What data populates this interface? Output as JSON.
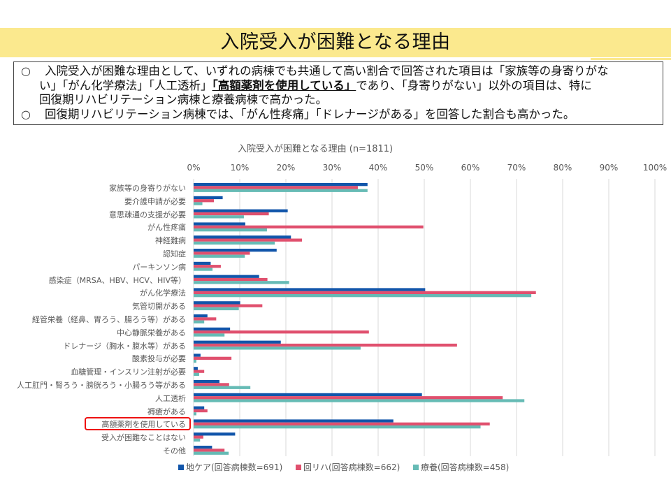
{
  "page": {
    "title": "入院受入が困難となる理由",
    "summary": {
      "bullet": "○",
      "line1": "入院受入が困難な理由として、いずれの病棟でも共通して高い割合で回答された項目は「家族等の身寄りがな",
      "line2_a": "い」「がん化学療法」「人工透析」",
      "line2_highlight": "「高額薬剤を使用している」",
      "line2_b": "であり、「身寄りがない」以外の項目は、特に",
      "line3": "回復期リハビリテーション病棟と療養病棟で高かった。",
      "line4": "回復期リハビリテーション病棟では、「がん性疼痛」「ドレナージがある」を回答した割合も高かった。"
    }
  },
  "colors": {
    "title_band": "#fbe98e",
    "series": [
      "#1155aa",
      "#e0506e",
      "#66bbb5"
    ],
    "highlight_box": "#ee1111",
    "grid": "#d9d9d9"
  },
  "chart_data": {
    "type": "bar",
    "orientation": "horizontal",
    "title": "入院受入が困難となる理由 (n=1811)",
    "xlabel": "",
    "ylabel": "",
    "xlim": [
      0,
      100
    ],
    "x_tick_labels": [
      "0%",
      "10%",
      "20%",
      "30%",
      "40%",
      "50%",
      "60%",
      "70%",
      "80%",
      "90%",
      "100%"
    ],
    "x_axis_position": "top",
    "grid": true,
    "legend_position": "bottom",
    "highlighted_category": "高額薬剤を使用している",
    "categories": [
      "家族等の身寄りがない",
      "要介護申請が必要",
      "意思疎通の支援が必要",
      "がん性疼痛",
      "神経難病",
      "認知症",
      "パーキンソン病",
      "感染症（MRSA、HBV、HCV、HIV等）",
      "がん化学療法",
      "気管切開がある",
      "経管栄養（経鼻、胃ろう、腸ろう等）がある",
      "中心静脈栄養がある",
      "ドレナージ（胸水・腹水等）がある",
      "酸素投与が必要",
      "血糖管理・インスリン注射が必要",
      "人工肛門・腎ろう・膀胱ろう・小腸ろう等がある",
      "人工透析",
      "褥瘡がある",
      "高額薬剤を使用している",
      "受入が困難なことはない",
      "その他"
    ],
    "series": [
      {
        "name": "地ケア(回答病棟数=691)",
        "values": [
          37.7,
          6.3,
          20.4,
          11.2,
          21.1,
          18.0,
          3.7,
          14.2,
          50.2,
          10.1,
          3.0,
          7.9,
          18.9,
          1.5,
          0.9,
          5.6,
          49.5,
          2.3,
          43.3,
          9.0,
          4.0
        ]
      },
      {
        "name": "回リハ(回答病棟数=662)",
        "values": [
          35.6,
          4.4,
          16.3,
          49.8,
          23.5,
          12.2,
          5.9,
          16.0,
          74.2,
          14.9,
          4.9,
          38.0,
          57.1,
          8.2,
          2.3,
          7.7,
          67.0,
          3.0,
          64.2,
          2.1,
          6.7
        ]
      },
      {
        "name": "療養(回答病棟数=458)",
        "values": [
          37.7,
          1.9,
          10.9,
          15.9,
          17.6,
          11.1,
          4.1,
          20.7,
          73.2,
          9.8,
          2.3,
          6.7,
          36.2,
          0.6,
          1.2,
          12.3,
          71.7,
          0.6,
          62.2,
          1.4,
          7.6
        ]
      }
    ]
  }
}
